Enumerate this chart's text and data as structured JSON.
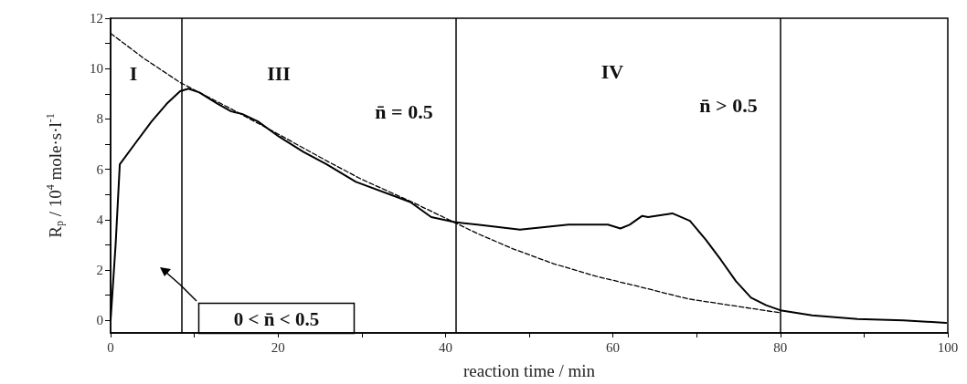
{
  "chart_data": {
    "type": "line",
    "xlabel": "reaction time / min",
    "ylabel": "R$_{p}$ / 10$^{4}$ mole·s·l$^{-1}$",
    "xlim": [
      0,
      100
    ],
    "ylim": [
      -0.5,
      12
    ],
    "xticks": [
      0,
      {
        "value": 10,
        "label": null
      },
      20,
      {
        "value": 30,
        "label": null
      },
      40,
      {
        "value": 50,
        "label": null
      },
      60,
      {
        "value": 70,
        "label": null
      },
      80,
      {
        "value": 90,
        "label": null
      },
      100
    ],
    "yticks": [
      0,
      {
        "value": 1,
        "label": null
      },
      2,
      {
        "value": 3,
        "label": null
      },
      4,
      {
        "value": 5,
        "label": null
      },
      6,
      {
        "value": 7,
        "label": null
      },
      8,
      {
        "value": 9,
        "label": null
      },
      10,
      {
        "value": 11,
        "label": null
      },
      12
    ],
    "grid": false,
    "marker": "none",
    "series": [
      {
        "color": "#000000",
        "line_style": "solid",
        "x": [
          0,
          0.6,
          1.1,
          3.1,
          4.9,
          6.7,
          8.3,
          9.3,
          10.6,
          12.8,
          14.4,
          15.7,
          17.6,
          20.1,
          23,
          25.8,
          29.3,
          35.8,
          38.3,
          41.1,
          43.8,
          48.9,
          54.7,
          59.4,
          60.9,
          62,
          63.5,
          64.2,
          67.1,
          69.2,
          71.1,
          72.9,
          74.7,
          76.5,
          78.3,
          80,
          83.8,
          89.2,
          94.7,
          99.8
        ],
        "values": [
          0,
          3,
          6.2,
          7.1,
          7.9,
          8.6,
          9.1,
          9.2,
          9.05,
          8.6,
          8.3,
          8.2,
          7.9,
          7.3,
          6.7,
          6.2,
          5.5,
          4.7,
          4.1,
          3.9,
          3.8,
          3.6,
          3.8,
          3.8,
          3.65,
          3.8,
          4.15,
          4.1,
          4.25,
          3.95,
          3.2,
          2.4,
          1.55,
          0.9,
          0.6,
          0.4,
          0.2,
          0.05,
          0,
          -0.1
        ]
      },
      {
        "color": "#000000",
        "line_style": "dashed",
        "x": [
          0,
          4,
          8.3,
          10.6,
          14.4,
          20,
          26,
          30,
          36,
          41,
          43.8,
          48,
          52.9,
          58,
          63,
          69,
          75,
          80
        ],
        "values": [
          11.4,
          10.4,
          9.45,
          9.05,
          8.4,
          7.4,
          6.3,
          5.6,
          4.7,
          3.9,
          3.45,
          2.85,
          2.25,
          1.75,
          1.35,
          0.85,
          0.55,
          0.3
        ]
      }
    ],
    "ref_lines": [
      {
        "axis": "x",
        "value": 8.5,
        "color": "#000000",
        "line_style": "solid"
      },
      {
        "axis": "x",
        "value": 41.2,
        "color": "#000000",
        "line_style": "solid"
      },
      {
        "axis": "x",
        "value": 80,
        "color": "#000000",
        "line_style": "solid"
      }
    ],
    "annotations": [
      "I",
      "III",
      "IV",
      "n̄ = 0.5",
      "n̄ > 0.5",
      "0 < n̄ < 0.5"
    ]
  }
}
